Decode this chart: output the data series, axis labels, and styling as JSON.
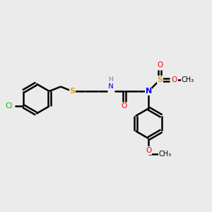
{
  "background_color": "#ebebeb",
  "bond_color": "#000000",
  "bond_width": 1.8,
  "atom_colors": {
    "C": "#000000",
    "H": "#708090",
    "N": "#0000FF",
    "O": "#FF0000",
    "S": "#DAA520",
    "Cl": "#00BB00"
  },
  "figsize": [
    3.0,
    3.0
  ],
  "dpi": 100
}
